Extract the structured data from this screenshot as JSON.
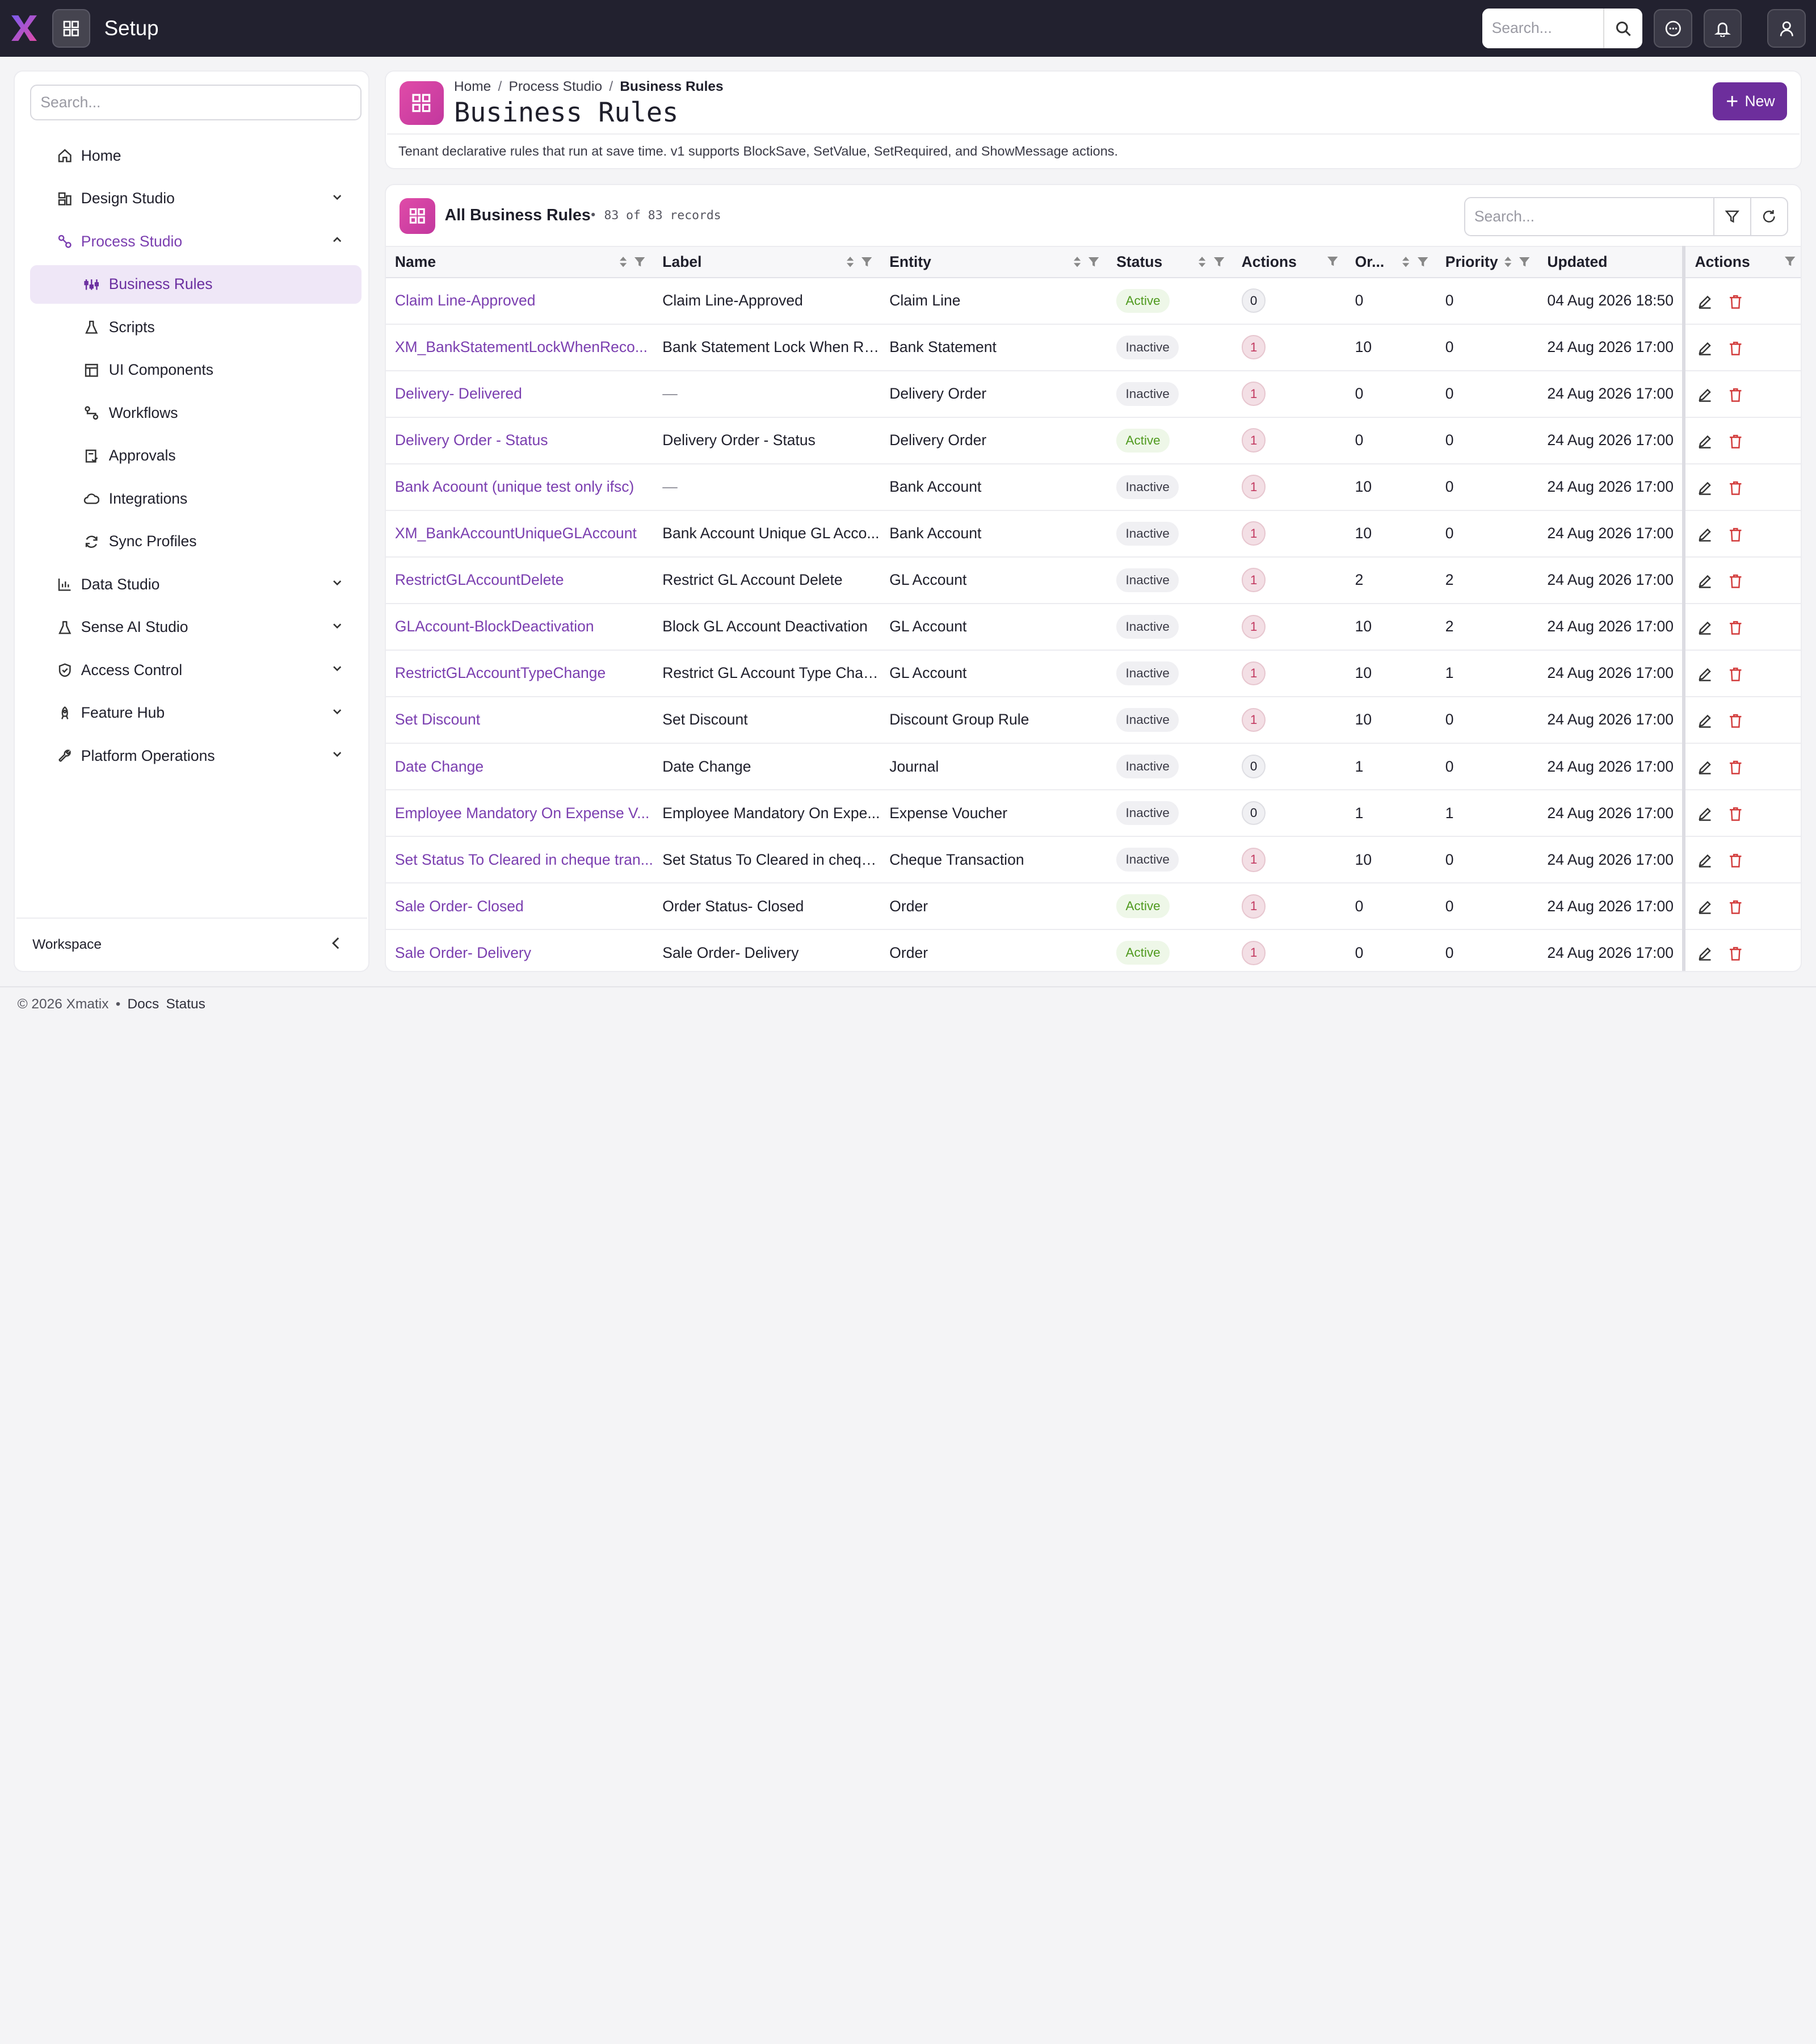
{
  "app": {
    "title": "Setup",
    "search_placeholder": "Search..."
  },
  "sidebar": {
    "search_placeholder": "Search...",
    "items": [
      {
        "label": "Home",
        "icon": "home-icon"
      },
      {
        "label": "Design Studio",
        "icon": "design-icon"
      },
      {
        "label": "Process Studio",
        "icon": "process-icon",
        "expanded": true,
        "children": [
          {
            "label": "Business Rules",
            "icon": "rules-icon",
            "active": true
          },
          {
            "label": "Scripts",
            "icon": "flask-icon"
          },
          {
            "label": "UI Components",
            "icon": "layout-icon"
          },
          {
            "label": "Workflows",
            "icon": "workflow-icon"
          },
          {
            "label": "Approvals",
            "icon": "approval-icon"
          },
          {
            "label": "Integrations",
            "icon": "cloud-icon"
          },
          {
            "label": "Sync Profiles",
            "icon": "sync-icon"
          }
        ]
      },
      {
        "label": "Data Studio",
        "icon": "chart-icon"
      },
      {
        "label": "Sense AI Studio",
        "icon": "flask-icon"
      },
      {
        "label": "Access Control",
        "icon": "shield-icon"
      },
      {
        "label": "Feature Hub",
        "icon": "rocket-icon"
      },
      {
        "label": "Platform Operations",
        "icon": "wrench-icon"
      }
    ],
    "workspace_label": "Workspace"
  },
  "header": {
    "breadcrumb": [
      "Home",
      "Process Studio",
      "Business Rules"
    ],
    "title": "Business Rules",
    "new_label": "New",
    "description": "Tenant declarative rules that run at save time. v1 supports BlockSave, SetValue, SetRequired, and ShowMessage actions."
  },
  "table": {
    "title": "All Business Rules",
    "count_text": "• 83 of 83 records",
    "search_placeholder": "Search...",
    "columns": [
      "Name",
      "Label",
      "Entity",
      "Status",
      "Actions",
      "Or...",
      "Priority",
      "Updated",
      "Actions"
    ],
    "rows": [
      {
        "name": "Claim Line-Approved",
        "label": "Claim Line-Approved",
        "entity": "Claim Line",
        "status": "Active",
        "actions": "0",
        "order": "0",
        "priority": "0",
        "updated": "04 Aug 2026 18:50"
      },
      {
        "name": "XM_BankStatementLockWhenReco...",
        "label": "Bank Statement Lock When Re...",
        "entity": "Bank Statement",
        "status": "Inactive",
        "actions": "1",
        "order": "10",
        "priority": "0",
        "updated": "24 Aug 2026 17:00"
      },
      {
        "name": "Delivery- Delivered",
        "label": "—",
        "entity": "Delivery Order",
        "status": "Inactive",
        "actions": "1",
        "order": "0",
        "priority": "0",
        "updated": "24 Aug 2026 17:00"
      },
      {
        "name": "Delivery Order - Status",
        "label": "Delivery Order - Status",
        "entity": "Delivery Order",
        "status": "Active",
        "actions": "1",
        "order": "0",
        "priority": "0",
        "updated": "24 Aug 2026 17:00"
      },
      {
        "name": "Bank Acoount (unique test only ifsc)",
        "label": "—",
        "entity": "Bank Account",
        "status": "Inactive",
        "actions": "1",
        "order": "10",
        "priority": "0",
        "updated": "24 Aug 2026 17:00"
      },
      {
        "name": "XM_BankAccountUniqueGLAccount",
        "label": "Bank Account Unique GL Acco...",
        "entity": "Bank Account",
        "status": "Inactive",
        "actions": "1",
        "order": "10",
        "priority": "0",
        "updated": "24 Aug 2026 17:00"
      },
      {
        "name": "RestrictGLAccountDelete",
        "label": "Restrict GL Account Delete",
        "entity": "GL Account",
        "status": "Inactive",
        "actions": "1",
        "order": "2",
        "priority": "2",
        "updated": "24 Aug 2026 17:00"
      },
      {
        "name": "GLAccount-BlockDeactivation",
        "label": "Block GL Account Deactivation",
        "entity": "GL Account",
        "status": "Inactive",
        "actions": "1",
        "order": "10",
        "priority": "2",
        "updated": "24 Aug 2026 17:00"
      },
      {
        "name": "RestrictGLAccountTypeChange",
        "label": "Restrict GL Account Type Chan...",
        "entity": "GL Account",
        "status": "Inactive",
        "actions": "1",
        "order": "10",
        "priority": "1",
        "updated": "24 Aug 2026 17:00"
      },
      {
        "name": "Set Discount",
        "label": "Set Discount",
        "entity": "Discount Group Rule",
        "status": "Inactive",
        "actions": "1",
        "order": "10",
        "priority": "0",
        "updated": "24 Aug 2026 17:00"
      },
      {
        "name": "Date Change",
        "label": "Date Change",
        "entity": "Journal",
        "status": "Inactive",
        "actions": "0",
        "order": "1",
        "priority": "0",
        "updated": "24 Aug 2026 17:00"
      },
      {
        "name": "Employee Mandatory On Expense V...",
        "label": "Employee Mandatory On Expe...",
        "entity": "Expense Voucher",
        "status": "Inactive",
        "actions": "0",
        "order": "1",
        "priority": "1",
        "updated": "24 Aug 2026 17:00"
      },
      {
        "name": "Set Status To Cleared in cheque tran...",
        "label": "Set Status To Cleared in chequ...",
        "entity": "Cheque Transaction",
        "status": "Inactive",
        "actions": "1",
        "order": "10",
        "priority": "0",
        "updated": "24 Aug 2026 17:00"
      },
      {
        "name": "Sale Order- Closed",
        "label": "Order Status- Closed",
        "entity": "Order",
        "status": "Active",
        "actions": "1",
        "order": "0",
        "priority": "0",
        "updated": "24 Aug 2026 17:00"
      },
      {
        "name": "Sale Order- Delivery",
        "label": "Sale Order- Delivery",
        "entity": "Order",
        "status": "Active",
        "actions": "1",
        "order": "0",
        "priority": "0",
        "updated": "24 Aug 2026 17:00"
      }
    ]
  },
  "footer": {
    "copyright": "© 2026 Xmatix",
    "sep": "•",
    "links": [
      "Docs",
      "Status"
    ]
  },
  "colors": {
    "accent": "#6d2e9c",
    "brand_pink": "#d6409f",
    "topbar": "#22212f",
    "link": "#7b3fb0"
  }
}
